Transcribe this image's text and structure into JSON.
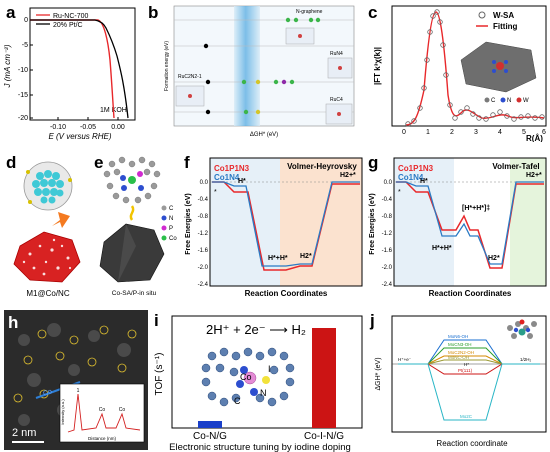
{
  "panels": {
    "a": {
      "letter": "a",
      "ylabel": "J (mA cm⁻²)",
      "xlabel": "E (V versus RHE)",
      "xticks": [
        "-0.10",
        "-0.05",
        "0.00"
      ],
      "yticks": [
        "0",
        "-5",
        "-10",
        "-15",
        "-20"
      ],
      "legend": [
        "Ru-NC-700",
        "20% Pt/C"
      ],
      "annotation": "1M KOH",
      "series_colors": [
        "#e8282b",
        "#000000"
      ]
    },
    "b": {
      "letter": "b",
      "labels": [
        "N-graphene",
        "RuN4",
        "RuC2N2-1",
        "RuC4"
      ],
      "ylabel": "Formation energy (eV)",
      "xlabel": "ΔGH* (eV)"
    },
    "c": {
      "letter": "c",
      "legend": [
        "W-SA",
        "Fitting"
      ],
      "ylabel": "|FT k³χ(k)|",
      "xlabel": "R(Å)",
      "xticks": [
        "0",
        "1",
        "2",
        "3",
        "4",
        "5",
        "6"
      ],
      "atom_legend": [
        "C",
        "N",
        "W"
      ]
    },
    "d": {
      "letter": "d",
      "caption": "M1@Co/NC"
    },
    "e": {
      "letter": "e",
      "atom_legend": [
        "C",
        "N",
        "P",
        "Co"
      ],
      "caption": "Co-SA/P-in situ"
    },
    "f": {
      "letter": "f",
      "title": "Volmer-Heyrovsky",
      "series": [
        "Co1P1N3",
        "Co1N4"
      ],
      "ylabel": "Free Energies (eV)",
      "xlabel": "Reaction Coordinates",
      "yticks": [
        "0.0",
        "-0.4",
        "-0.8",
        "-1.2",
        "-1.6",
        "-2.0",
        "-2.4"
      ],
      "state_labels": [
        "*",
        "H*",
        "H*+H*",
        "H2*",
        "H2+*"
      ]
    },
    "g": {
      "letter": "g",
      "title": "Volmer-Tafel",
      "series": [
        "Co1P1N3",
        "Co1N4"
      ],
      "ylabel": "Free Energies (eV)",
      "xlabel": "Reaction Coordinates",
      "yticks": [
        "0.0",
        "-0.4",
        "-0.8",
        "-1.2",
        "-1.6",
        "-2.0",
        "-2.4"
      ],
      "state_labels": [
        "*",
        "H*",
        "[H*+H*]‡",
        "H*+H*",
        "H2*",
        "H2+*"
      ]
    },
    "h": {
      "letter": "h",
      "scalebar": "2 nm",
      "inset_xlabel": "Distance (nm)",
      "inset_ylabel": "Intensity (a.u.)",
      "inset_peaks": [
        "1",
        "Co",
        "Co"
      ]
    },
    "i": {
      "letter": "i",
      "reaction": "2H⁺ + 2e⁻ ⟶ H₂",
      "ylabel": "TOF (s⁻¹)",
      "categories": [
        "Co-N/G",
        "Co-I-N/G"
      ],
      "values": [
        0.07,
        1.0
      ],
      "bar_colors": [
        "#1a3fc9",
        "#cc1414"
      ],
      "caption": "Electronic structure tuning by iodine doping",
      "atom_labels": [
        "Co",
        "I",
        "N",
        "C"
      ]
    },
    "j": {
      "letter": "j",
      "ylabel": "ΔGH* (eV)",
      "xlabel": "Reaction coordinate",
      "left_label": "H⁺+e⁻",
      "mid_label": "H*",
      "right_label": "1/2H₂",
      "levels": [
        "MoN6-OH",
        "MoCN3-OH",
        "MoC2N2-OH",
        "MoNC-OH",
        "Pt(111)",
        "Mo2C"
      ],
      "level_colors": [
        "#1a6fd0",
        "#2a9d2a",
        "#d48a00",
        "#999933",
        "#cc1414",
        "#29b6c6"
      ]
    }
  }
}
